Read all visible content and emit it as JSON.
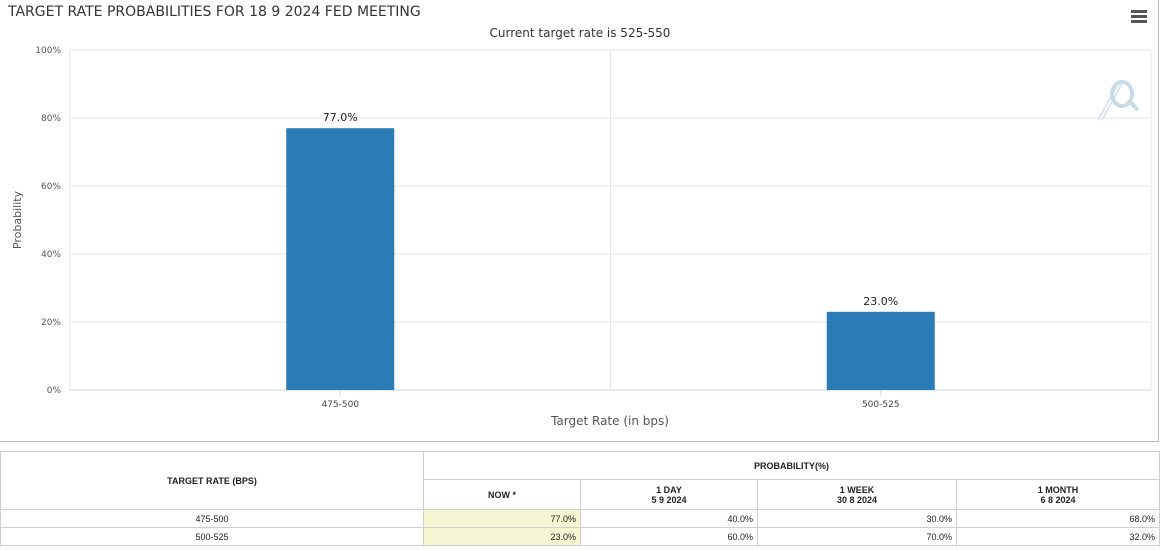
{
  "chart_data": {
    "type": "bar",
    "title": "TARGET RATE PROBABILITIES FOR 18 9 2024 FED MEETING",
    "subtitle": "Current target rate is 525-550",
    "xlabel": "Target Rate (in bps)",
    "ylabel": "Probability",
    "categories": [
      "475-500",
      "500-525"
    ],
    "values": [
      77.0,
      23.0
    ],
    "data_labels": [
      "77.0%",
      "23.0%"
    ],
    "ylim": [
      0,
      100
    ],
    "yticks": [
      0,
      20,
      40,
      60,
      80,
      100
    ],
    "ytick_labels": [
      "0%",
      "20%",
      "40%",
      "60%",
      "80%",
      "100%"
    ],
    "bar_color": "#2b7bb6",
    "grid": true
  },
  "table": {
    "target_header": "TARGET RATE (BPS)",
    "prob_header": "PROBABILITY(%)",
    "columns": [
      {
        "label": "NOW *",
        "date": ""
      },
      {
        "label": "1 DAY",
        "date": "5 9 2024"
      },
      {
        "label": "1 WEEK",
        "date": "30 8 2024"
      },
      {
        "label": "1 MONTH",
        "date": "6 8 2024"
      }
    ],
    "rows": [
      {
        "rate": "475-500",
        "values": [
          "77.0%",
          "40.0%",
          "30.0%",
          "68.0%"
        ]
      },
      {
        "rate": "500-525",
        "values": [
          "23.0%",
          "60.0%",
          "70.0%",
          "32.0%"
        ]
      }
    ]
  }
}
